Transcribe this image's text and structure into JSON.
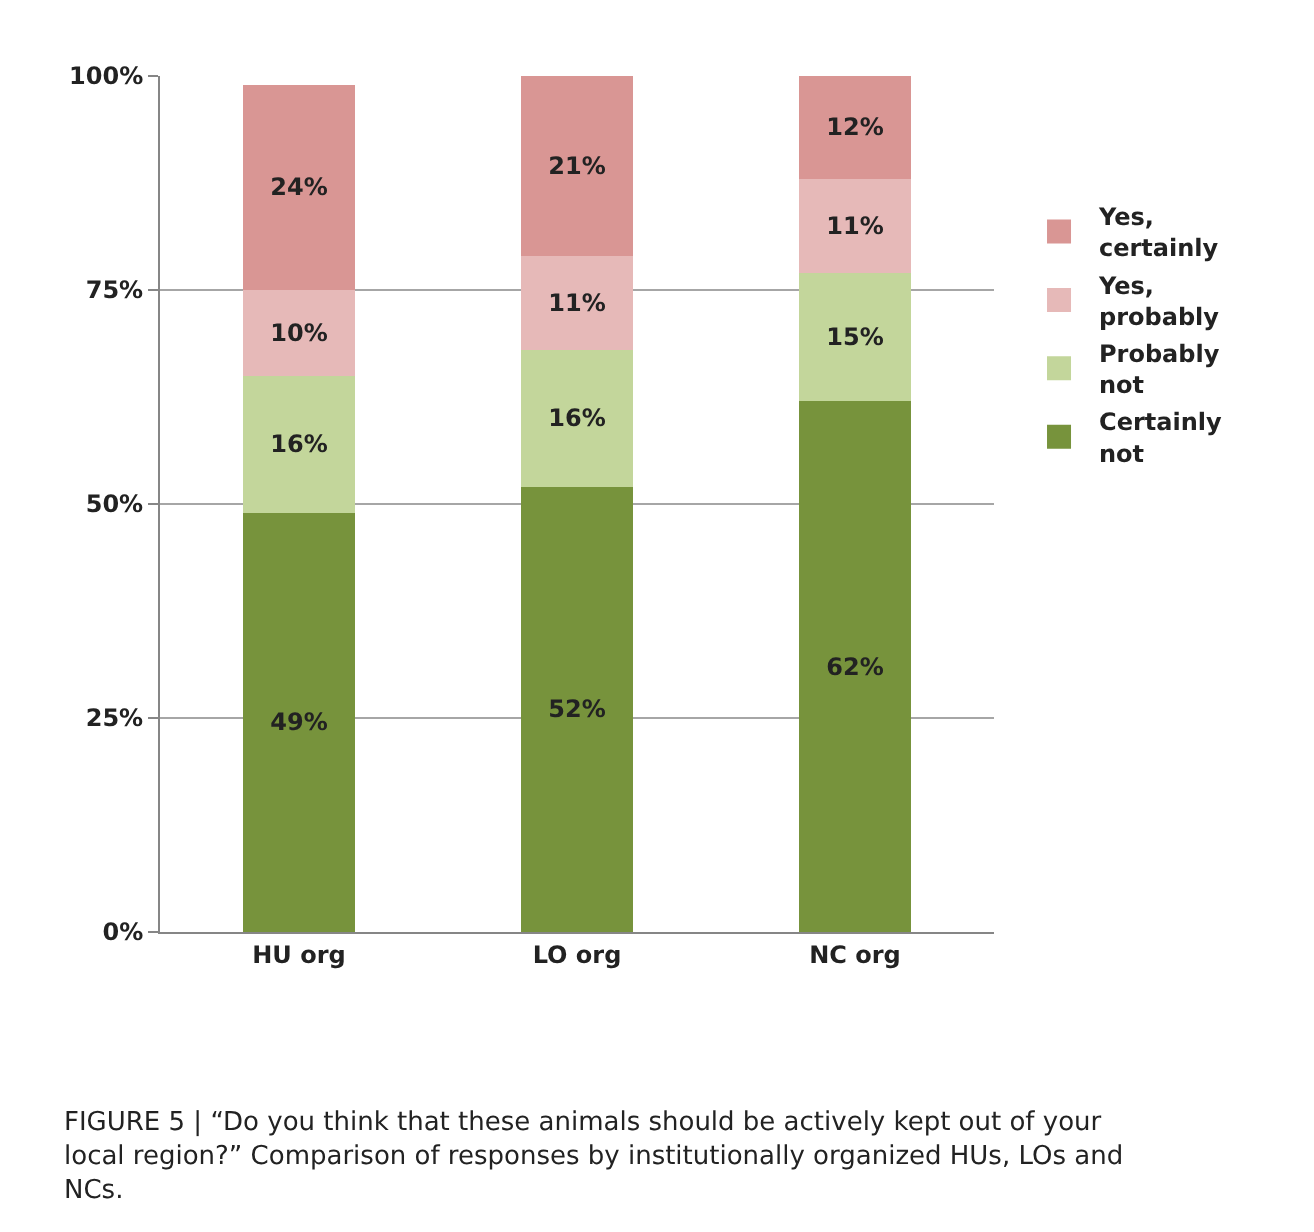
{
  "chart_data": {
    "type": "bar",
    "stacked": true,
    "categories": [
      "HU org",
      "LO org",
      "NC org"
    ],
    "series": [
      {
        "name": "Certainly not",
        "color": "#77933c",
        "values": [
          49,
          52,
          62
        ],
        "value_labels": [
          "49%",
          "52%",
          "62%"
        ]
      },
      {
        "name": "Probably not",
        "color": "#c3d69b",
        "values": [
          16,
          16,
          15
        ],
        "value_labels": [
          "16%",
          "16%",
          "15%"
        ]
      },
      {
        "name": "Yes, probably",
        "color": "#e6b9b8",
        "values": [
          10,
          11,
          11
        ],
        "value_labels": [
          "10%",
          "11%",
          "11%"
        ]
      },
      {
        "name": "Yes, certainly",
        "color": "#d99694",
        "values": [
          24,
          21,
          12
        ],
        "value_labels": [
          "24%",
          "21%",
          "12%"
        ]
      }
    ],
    "ylim": [
      0,
      100
    ],
    "yticks": [
      {
        "value": 0,
        "label": "0%"
      },
      {
        "value": 25,
        "label": "25%"
      },
      {
        "value": 50,
        "label": "50%"
      },
      {
        "value": 75,
        "label": "75%"
      },
      {
        "value": 100,
        "label": "100%"
      }
    ],
    "grid": "y",
    "legend": "right",
    "annotations": [
      "FIGURE 5 | “Do you think that these animals should be actively kept out of your local region?” Comparison of responses by institutionally organized HUs, LOs and NCs."
    ]
  }
}
